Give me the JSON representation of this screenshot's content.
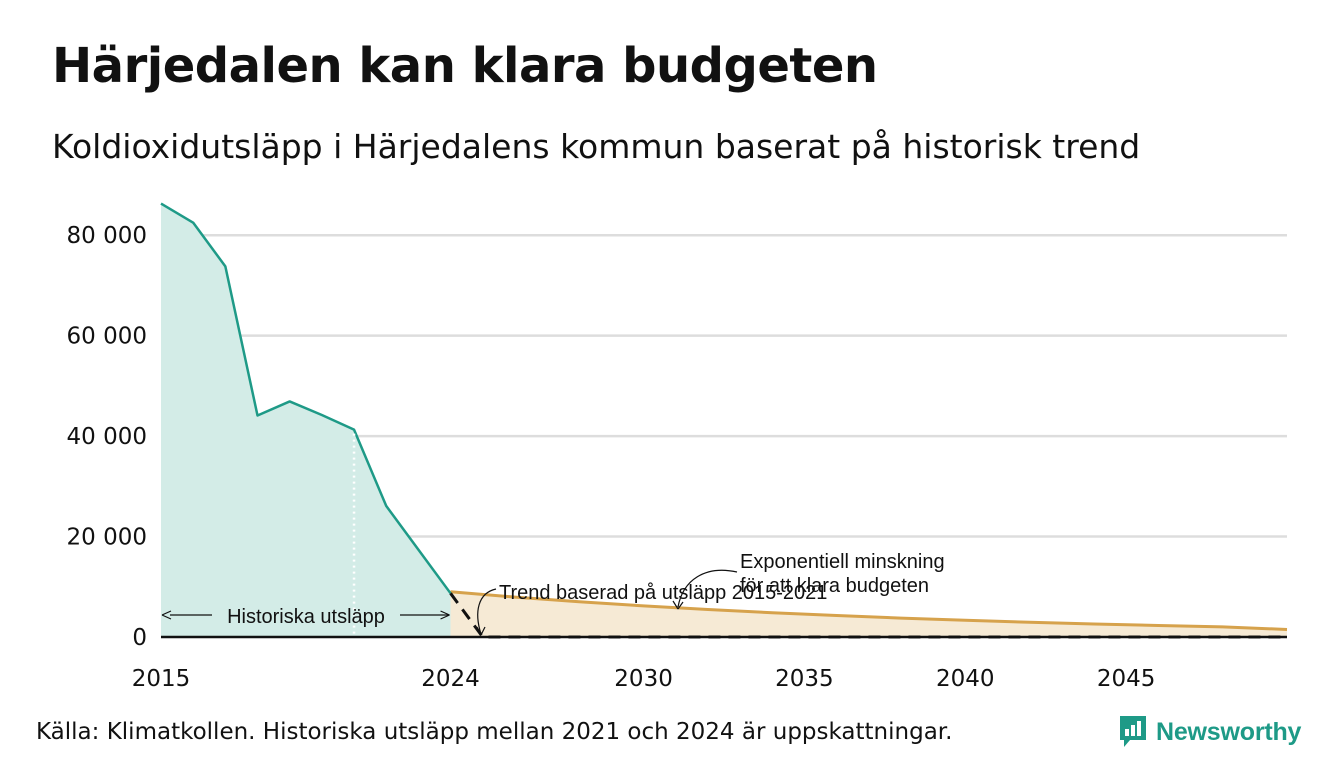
{
  "header": {
    "title": "Härjedalen kan klara budgeten",
    "subtitle": "Koldioxidutsläpp i Härjedalens kommun baserat på historisk trend"
  },
  "footer": {
    "source": "Källa: Klimatkollen. Historiska utsläpp mellan 2021 och 2024 är uppskattningar."
  },
  "logo": {
    "text": "Newsworthy",
    "icon": "newsworthy-chart-icon"
  },
  "colors": {
    "historical_line": "#1e9a87",
    "historical_fill": "#d3ece7",
    "budget_line": "#d6a24c",
    "budget_fill": "#f6ead5",
    "grid": "#dddddd",
    "trend": "#111111"
  },
  "annotations": {
    "historical": "Historiska utsläpp",
    "trend": "Trend baserad på utsläpp 2015-2021",
    "exponential_line1": "Exponentiell minskning",
    "exponential_line2": "för att klara budgeten"
  },
  "chart_data": {
    "type": "area",
    "title": "Härjedalen kan klara budgeten",
    "subtitle": "Koldioxidutsläpp i Härjedalens kommun baserat på historisk trend",
    "xlabel": "",
    "ylabel": "",
    "xlim": [
      2015,
      2050
    ],
    "ylim": [
      0,
      90000
    ],
    "x_ticks": [
      2015,
      2024,
      2030,
      2035,
      2040,
      2045
    ],
    "y_ticks": [
      0,
      20000,
      40000,
      60000,
      80000
    ],
    "x_tick_labels": [
      "2015",
      "2024",
      "2030",
      "2035",
      "2040",
      "2045"
    ],
    "y_tick_labels": [
      "0",
      "20 000",
      "40 000",
      "60 000",
      "80 000"
    ],
    "grid": "horizontal",
    "legend": "none",
    "series": [
      {
        "name": "Historiska utsläpp",
        "x": [
          2015,
          2016,
          2017,
          2018,
          2019,
          2020,
          2021,
          2022,
          2023,
          2024
        ],
        "values": [
          86300,
          82500,
          73800,
          44100,
          46900,
          44200,
          41300,
          26100,
          17400,
          8700
        ]
      },
      {
        "name": "Trend baserad på utsläpp 2015-2021",
        "x": [
          2024,
          2025,
          2026,
          2050
        ],
        "values": [
          8700,
          0,
          0,
          0
        ]
      },
      {
        "name": "Exponentiell minskning för att klara budgeten",
        "x": [
          2024,
          2026,
          2028,
          2030,
          2032,
          2034,
          2036,
          2038,
          2040,
          2042,
          2044,
          2046,
          2048,
          2050
        ],
        "values": [
          9000,
          7950,
          7010,
          6190,
          5470,
          4830,
          4270,
          3770,
          3330,
          2940,
          2590,
          2290,
          2020,
          1500
        ]
      }
    ],
    "estimated_from": 2021
  }
}
